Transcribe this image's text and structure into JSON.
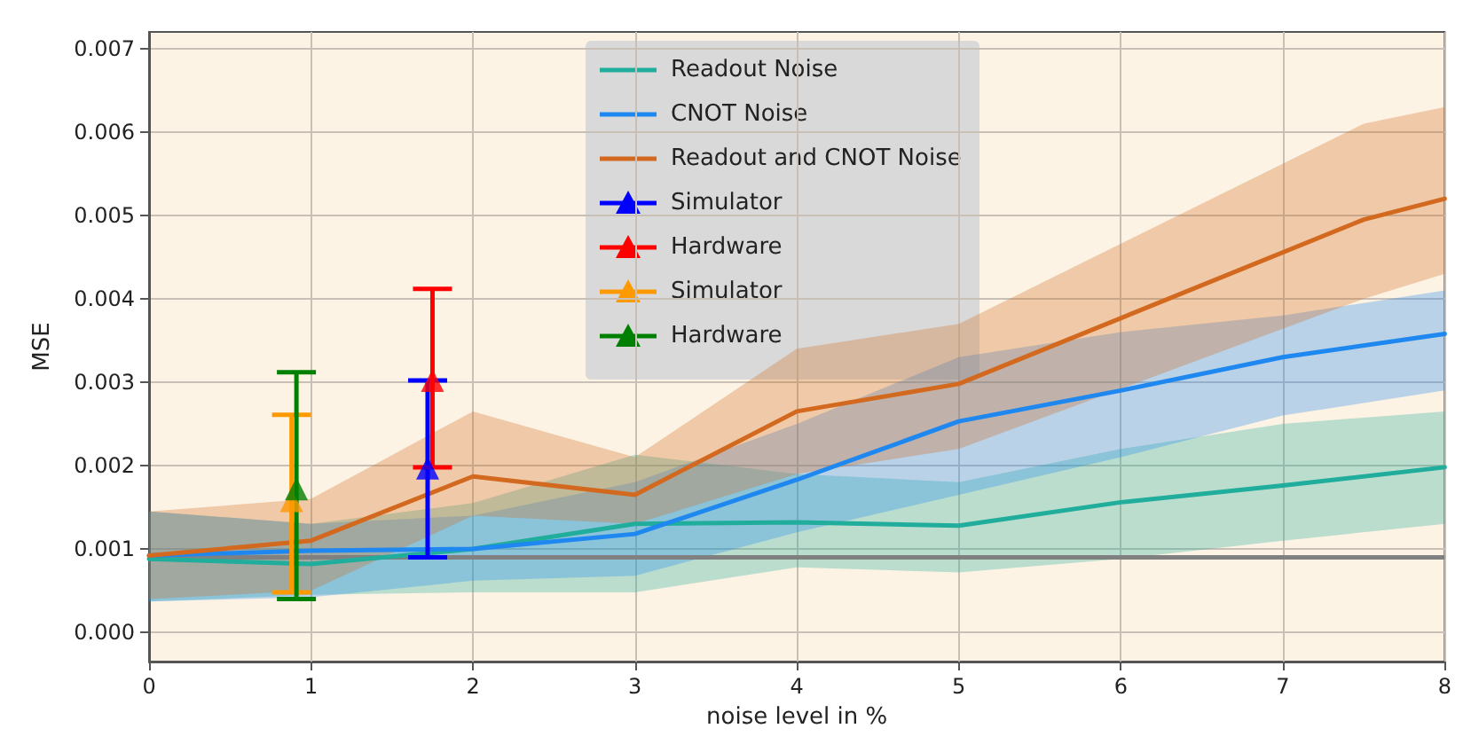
{
  "chart_data": {
    "type": "line",
    "xlabel": "noise level in %",
    "ylabel": "MSE",
    "xlim": [
      0,
      8
    ],
    "xticks": [
      0,
      1,
      2,
      3,
      4,
      5,
      6,
      7,
      8
    ],
    "ylim": [
      -0.00035,
      0.0072
    ],
    "yticks": [
      {
        "value": 0,
        "label": "0.000"
      },
      {
        "value": 0.001,
        "label": "0.001"
      },
      {
        "value": 0.002,
        "label": "0.002"
      },
      {
        "value": 0.003,
        "label": "0.003"
      },
      {
        "value": 0.004,
        "label": "0.004"
      },
      {
        "value": 0.005,
        "label": "0.005"
      },
      {
        "value": 0.006,
        "label": "0.006"
      },
      {
        "value": 0.007,
        "label": "0.007"
      }
    ],
    "grid": true,
    "legend": "top",
    "marker": "none",
    "line_style": "solid",
    "series": [
      {
        "name": "Readout Noise",
        "color": "#20ad9c",
        "x": [
          0,
          1,
          2,
          3,
          4,
          5,
          6,
          7,
          8
        ],
        "values": [
          0.00088,
          0.00082,
          0.001,
          0.0013,
          0.00132,
          0.00128,
          0.00156,
          0.00176,
          0.00198
        ],
        "lower": [
          0.00037,
          0.00045,
          0.00048,
          0.00048,
          0.00078,
          0.00072,
          0.00088,
          0.0011,
          0.0013
        ],
        "upper": [
          0.00145,
          0.0013,
          0.00155,
          0.00213,
          0.0019,
          0.0018,
          0.0022,
          0.0025,
          0.00265
        ]
      },
      {
        "name": "CNOT Noise",
        "color": "#1e88f0",
        "x": [
          0,
          1,
          2,
          3,
          4,
          5,
          6,
          7,
          8
        ],
        "values": [
          0.00092,
          0.00098,
          0.001,
          0.00118,
          0.00183,
          0.00253,
          0.0029,
          0.0033,
          0.00358
        ],
        "lower": [
          0.00037,
          0.00042,
          0.00062,
          0.00068,
          0.0012,
          0.00165,
          0.0021,
          0.0026,
          0.0029
        ],
        "upper": [
          0.00145,
          0.0013,
          0.0014,
          0.0018,
          0.0025,
          0.0033,
          0.0036,
          0.0038,
          0.0041
        ]
      },
      {
        "name": "Readout and CNOT Noise",
        "color": "#d2691e",
        "x": [
          0,
          1,
          2,
          3,
          4,
          5,
          7.5,
          8
        ],
        "values": [
          0.00092,
          0.0011,
          0.00187,
          0.00165,
          0.00265,
          0.00298,
          0.00495,
          0.0052
        ],
        "lower": [
          0.0004,
          0.0005,
          0.0014,
          0.0013,
          0.0019,
          0.0022,
          0.004,
          0.0043
        ],
        "upper": [
          0.00145,
          0.0016,
          0.00265,
          0.0021,
          0.0034,
          0.0037,
          0.0061,
          0.0063
        ]
      },
      {
        "name": "Simulator",
        "type": "scatter",
        "marker": "triangle",
        "color": "#0000ff",
        "x": [
          1.72
        ],
        "values": [
          0.00197
        ],
        "errors": [
          [
            0.0009,
            0.00302
          ]
        ]
      },
      {
        "name": "Hardware",
        "type": "scatter",
        "marker": "triangle",
        "color": "#ff0000",
        "x": [
          1.75
        ],
        "values": [
          0.00302
        ],
        "errors": [
          [
            0.00198,
            0.00412
          ]
        ]
      },
      {
        "name": "Simulator",
        "type": "scatter",
        "marker": "triangle",
        "color": "#ff9900",
        "x": [
          0.88
        ],
        "values": [
          0.00158
        ],
        "errors": [
          [
            0.00048,
            0.00261
          ]
        ]
      },
      {
        "name": "Hardware",
        "type": "scatter",
        "marker": "triangle",
        "color": "#008000",
        "x": [
          0.91
        ],
        "values": [
          0.00172
        ],
        "errors": [
          [
            0.0004,
            0.00312
          ]
        ]
      }
    ],
    "ref_lines": [
      {
        "axis": "y",
        "value": 0.0009,
        "color": "#808080",
        "line_style": "solid"
      }
    ]
  }
}
